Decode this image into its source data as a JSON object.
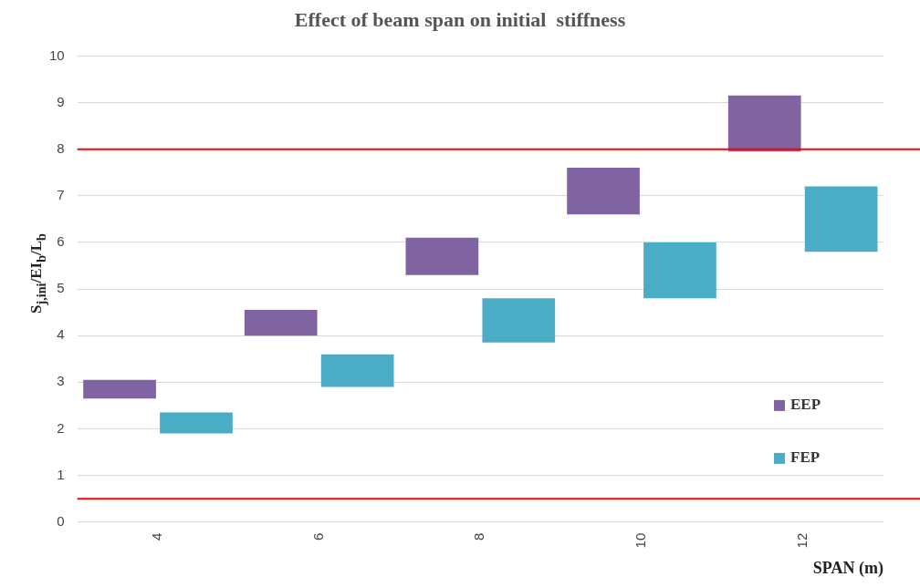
{
  "chart_data": {
    "type": "bar",
    "title": "Effect of beam span on initial  stiffness",
    "xlabel": "SPAN (m)",
    "ylabel": "S$_{j,ini}$/EI$_{b}$/L$_{b}$",
    "categories": [
      "4",
      "6",
      "8",
      "10",
      "12"
    ],
    "series": [
      {
        "name": "EEP",
        "color": "#8064a2",
        "base": [
          2.65,
          4.0,
          5.3,
          6.6,
          7.95
        ],
        "values": [
          0.4,
          0.55,
          0.8,
          1.0,
          1.2
        ]
      },
      {
        "name": "FEP",
        "color": "#4bacc6",
        "base": [
          1.9,
          2.9,
          3.85,
          4.8,
          5.8
        ],
        "values": [
          0.45,
          0.7,
          0.95,
          1.2,
          1.4
        ]
      }
    ],
    "ylim": [
      0,
      10
    ],
    "yticks": [
      0,
      1,
      2,
      3,
      4,
      5,
      6,
      7,
      8,
      9,
      10
    ],
    "grid": "y",
    "legend": "right",
    "ref_lines": [
      {
        "axis": "y",
        "value": 8,
        "color": "#ff0000"
      },
      {
        "axis": "y",
        "value": 0.5,
        "color": "#ff0000"
      }
    ]
  }
}
